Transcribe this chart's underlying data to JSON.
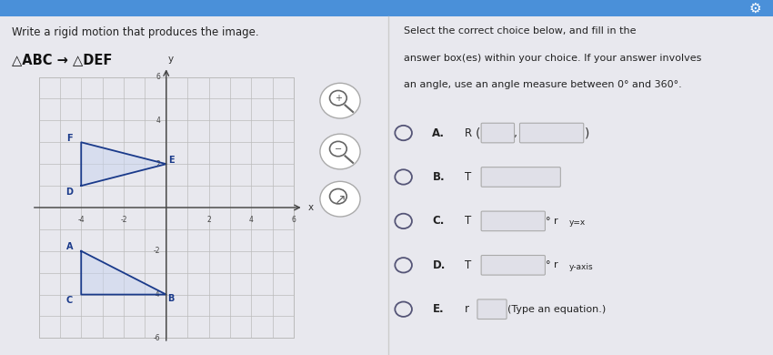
{
  "title_left": "Write a rigid motion that produces the image.",
  "subtitle_left": "△ABC → △DEF",
  "bg_color": "#e8e8ee",
  "left_panel_color": "#e8e8ee",
  "right_panel_color": "#e8e8ee",
  "grid_color": "#bbbbbb",
  "axis_color": "#444444",
  "triangle_color": "#1a3a8a",
  "triangle_fill": "#c8d4ee",
  "grid_range": [
    -6,
    6
  ],
  "ABC": {
    "A": [
      -4,
      -2
    ],
    "B": [
      0,
      -4
    ],
    "C": [
      -4,
      -4
    ]
  },
  "DEF": {
    "D": [
      -4,
      1
    ],
    "E": [
      0,
      2
    ],
    "F": [
      -4,
      3
    ]
  },
  "right_header_line1": "Select the correct choice below, and fill in the",
  "right_header_line2": "answer box(es) within your choice. If your answer involves",
  "right_header_line3": "an angle, use an angle measure between 0° and 360°.",
  "top_bar_color": "#4a90d9",
  "choices": [
    {
      "label": "A.",
      "letter": "R",
      "type": "rotation"
    },
    {
      "label": "B.",
      "letter": "T",
      "type": "translation_single"
    },
    {
      "label": "C.",
      "letter": "T",
      "type": "translation_reflect_yx"
    },
    {
      "label": "D.",
      "letter": "T",
      "type": "translation_reflect_yaxis"
    },
    {
      "label": "E.",
      "letter": "r",
      "type": "reflection_eq"
    }
  ]
}
